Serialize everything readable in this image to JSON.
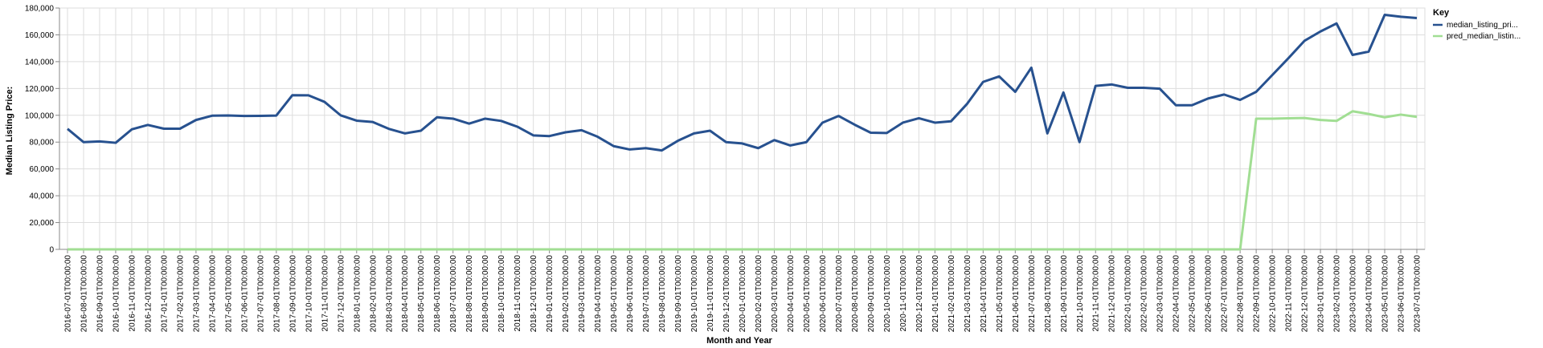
{
  "chart_data": {
    "type": "line",
    "xlabel": "Month and Year",
    "ylabel": "Median Listing Price:",
    "ylim": [
      0,
      180000
    ],
    "y_ticks": [
      0,
      20000,
      40000,
      60000,
      80000,
      100000,
      120000,
      140000,
      160000,
      180000
    ],
    "grid": true,
    "legend": {
      "title": "Key",
      "placement": "right"
    },
    "x": [
      "2016-07-01T00:00:00",
      "2016-08-01T00:00:00",
      "2016-09-01T00:00:00",
      "2016-10-01T00:00:00",
      "2016-11-01T00:00:00",
      "2016-12-01T00:00:00",
      "2017-01-01T00:00:00",
      "2017-02-01T00:00:00",
      "2017-03-01T00:00:00",
      "2017-04-01T00:00:00",
      "2017-05-01T00:00:00",
      "2017-06-01T00:00:00",
      "2017-07-01T00:00:00",
      "2017-08-01T00:00:00",
      "2017-09-01T00:00:00",
      "2017-10-01T00:00:00",
      "2017-11-01T00:00:00",
      "2017-12-01T00:00:00",
      "2018-01-01T00:00:00",
      "2018-02-01T00:00:00",
      "2018-03-01T00:00:00",
      "2018-04-01T00:00:00",
      "2018-05-01T00:00:00",
      "2018-06-01T00:00:00",
      "2018-07-01T00:00:00",
      "2018-08-01T00:00:00",
      "2018-09-01T00:00:00",
      "2018-10-01T00:00:00",
      "2018-11-01T00:00:00",
      "2018-12-01T00:00:00",
      "2019-01-01T00:00:00",
      "2019-02-01T00:00:00",
      "2019-03-01T00:00:00",
      "2019-04-01T00:00:00",
      "2019-05-01T00:00:00",
      "2019-06-01T00:00:00",
      "2019-07-01T00:00:00",
      "2019-08-01T00:00:00",
      "2019-09-01T00:00:00",
      "2019-10-01T00:00:00",
      "2019-11-01T00:00:00",
      "2019-12-01T00:00:00",
      "2020-01-01T00:00:00",
      "2020-02-01T00:00:00",
      "2020-03-01T00:00:00",
      "2020-04-01T00:00:00",
      "2020-05-01T00:00:00",
      "2020-06-01T00:00:00",
      "2020-07-01T00:00:00",
      "2020-08-01T00:00:00",
      "2020-09-01T00:00:00",
      "2020-10-01T00:00:00",
      "2020-11-01T00:00:00",
      "2020-12-01T00:00:00",
      "2021-01-01T00:00:00",
      "2021-02-01T00:00:00",
      "2021-03-01T00:00:00",
      "2021-04-01T00:00:00",
      "2021-05-01T00:00:00",
      "2021-06-01T00:00:00",
      "2021-07-01T00:00:00",
      "2021-08-01T00:00:00",
      "2021-09-01T00:00:00",
      "2021-10-01T00:00:00",
      "2021-11-01T00:00:00",
      "2021-12-01T00:00:00",
      "2022-01-01T00:00:00",
      "2022-02-01T00:00:00",
      "2022-03-01T00:00:00",
      "2022-04-01T00:00:00",
      "2022-05-01T00:00:00",
      "2022-06-01T00:00:00",
      "2022-07-01T00:00:00",
      "2022-08-01T00:00:00",
      "2022-09-01T00:00:00",
      "2022-10-01T00:00:00",
      "2022-11-01T00:00:00",
      "2022-12-01T00:00:00",
      "2023-01-01T00:00:00",
      "2023-02-01T00:00:00",
      "2023-03-01T00:00:00",
      "2023-04-01T00:00:00",
      "2023-05-01T00:00:00",
      "2023-06-01T00:00:00",
      "2023-07-01T00:00:00"
    ],
    "series": [
      {
        "name": "median_listing_pri...",
        "color": "#27518f",
        "values": [
          89900,
          80000,
          80500,
          79500,
          89500,
          92800,
          90000,
          90000,
          96500,
          99700,
          99900,
          99500,
          99600,
          99800,
          115000,
          114900,
          110000,
          100000,
          96000,
          95000,
          89900,
          86500,
          88500,
          98500,
          97500,
          93800,
          97500,
          95800,
          91500,
          85000,
          84500,
          87300,
          88900,
          84000,
          77000,
          74500,
          75500,
          73800,
          81000,
          86500,
          88500,
          80000,
          79000,
          75500,
          81500,
          77500,
          80000,
          94500,
          99500,
          93000,
          87000,
          86800,
          94500,
          97800,
          94500,
          95500,
          108500,
          124900,
          129000,
          117500,
          135500,
          86500,
          117000,
          80000,
          121900,
          123000,
          120500,
          120500,
          119800,
          107500,
          107500,
          112500,
          115500,
          111500,
          117500,
          130000,
          142500,
          155500,
          162500,
          168500,
          145000,
          147500,
          174900,
          173500,
          172500
        ]
      },
      {
        "name": "pred_median_listin...",
        "color": "#a1de93",
        "values": [
          0,
          0,
          0,
          0,
          0,
          0,
          0,
          0,
          0,
          0,
          0,
          0,
          0,
          0,
          0,
          0,
          0,
          0,
          0,
          0,
          0,
          0,
          0,
          0,
          0,
          0,
          0,
          0,
          0,
          0,
          0,
          0,
          0,
          0,
          0,
          0,
          0,
          0,
          0,
          0,
          0,
          0,
          0,
          0,
          0,
          0,
          0,
          0,
          0,
          0,
          0,
          0,
          0,
          0,
          0,
          0,
          0,
          0,
          0,
          0,
          0,
          0,
          0,
          0,
          0,
          0,
          0,
          0,
          0,
          0,
          0,
          0,
          0,
          0,
          97500,
          97500,
          97800,
          98000,
          96500,
          95800,
          103000,
          101000,
          98500,
          100500,
          98800
        ]
      }
    ]
  }
}
